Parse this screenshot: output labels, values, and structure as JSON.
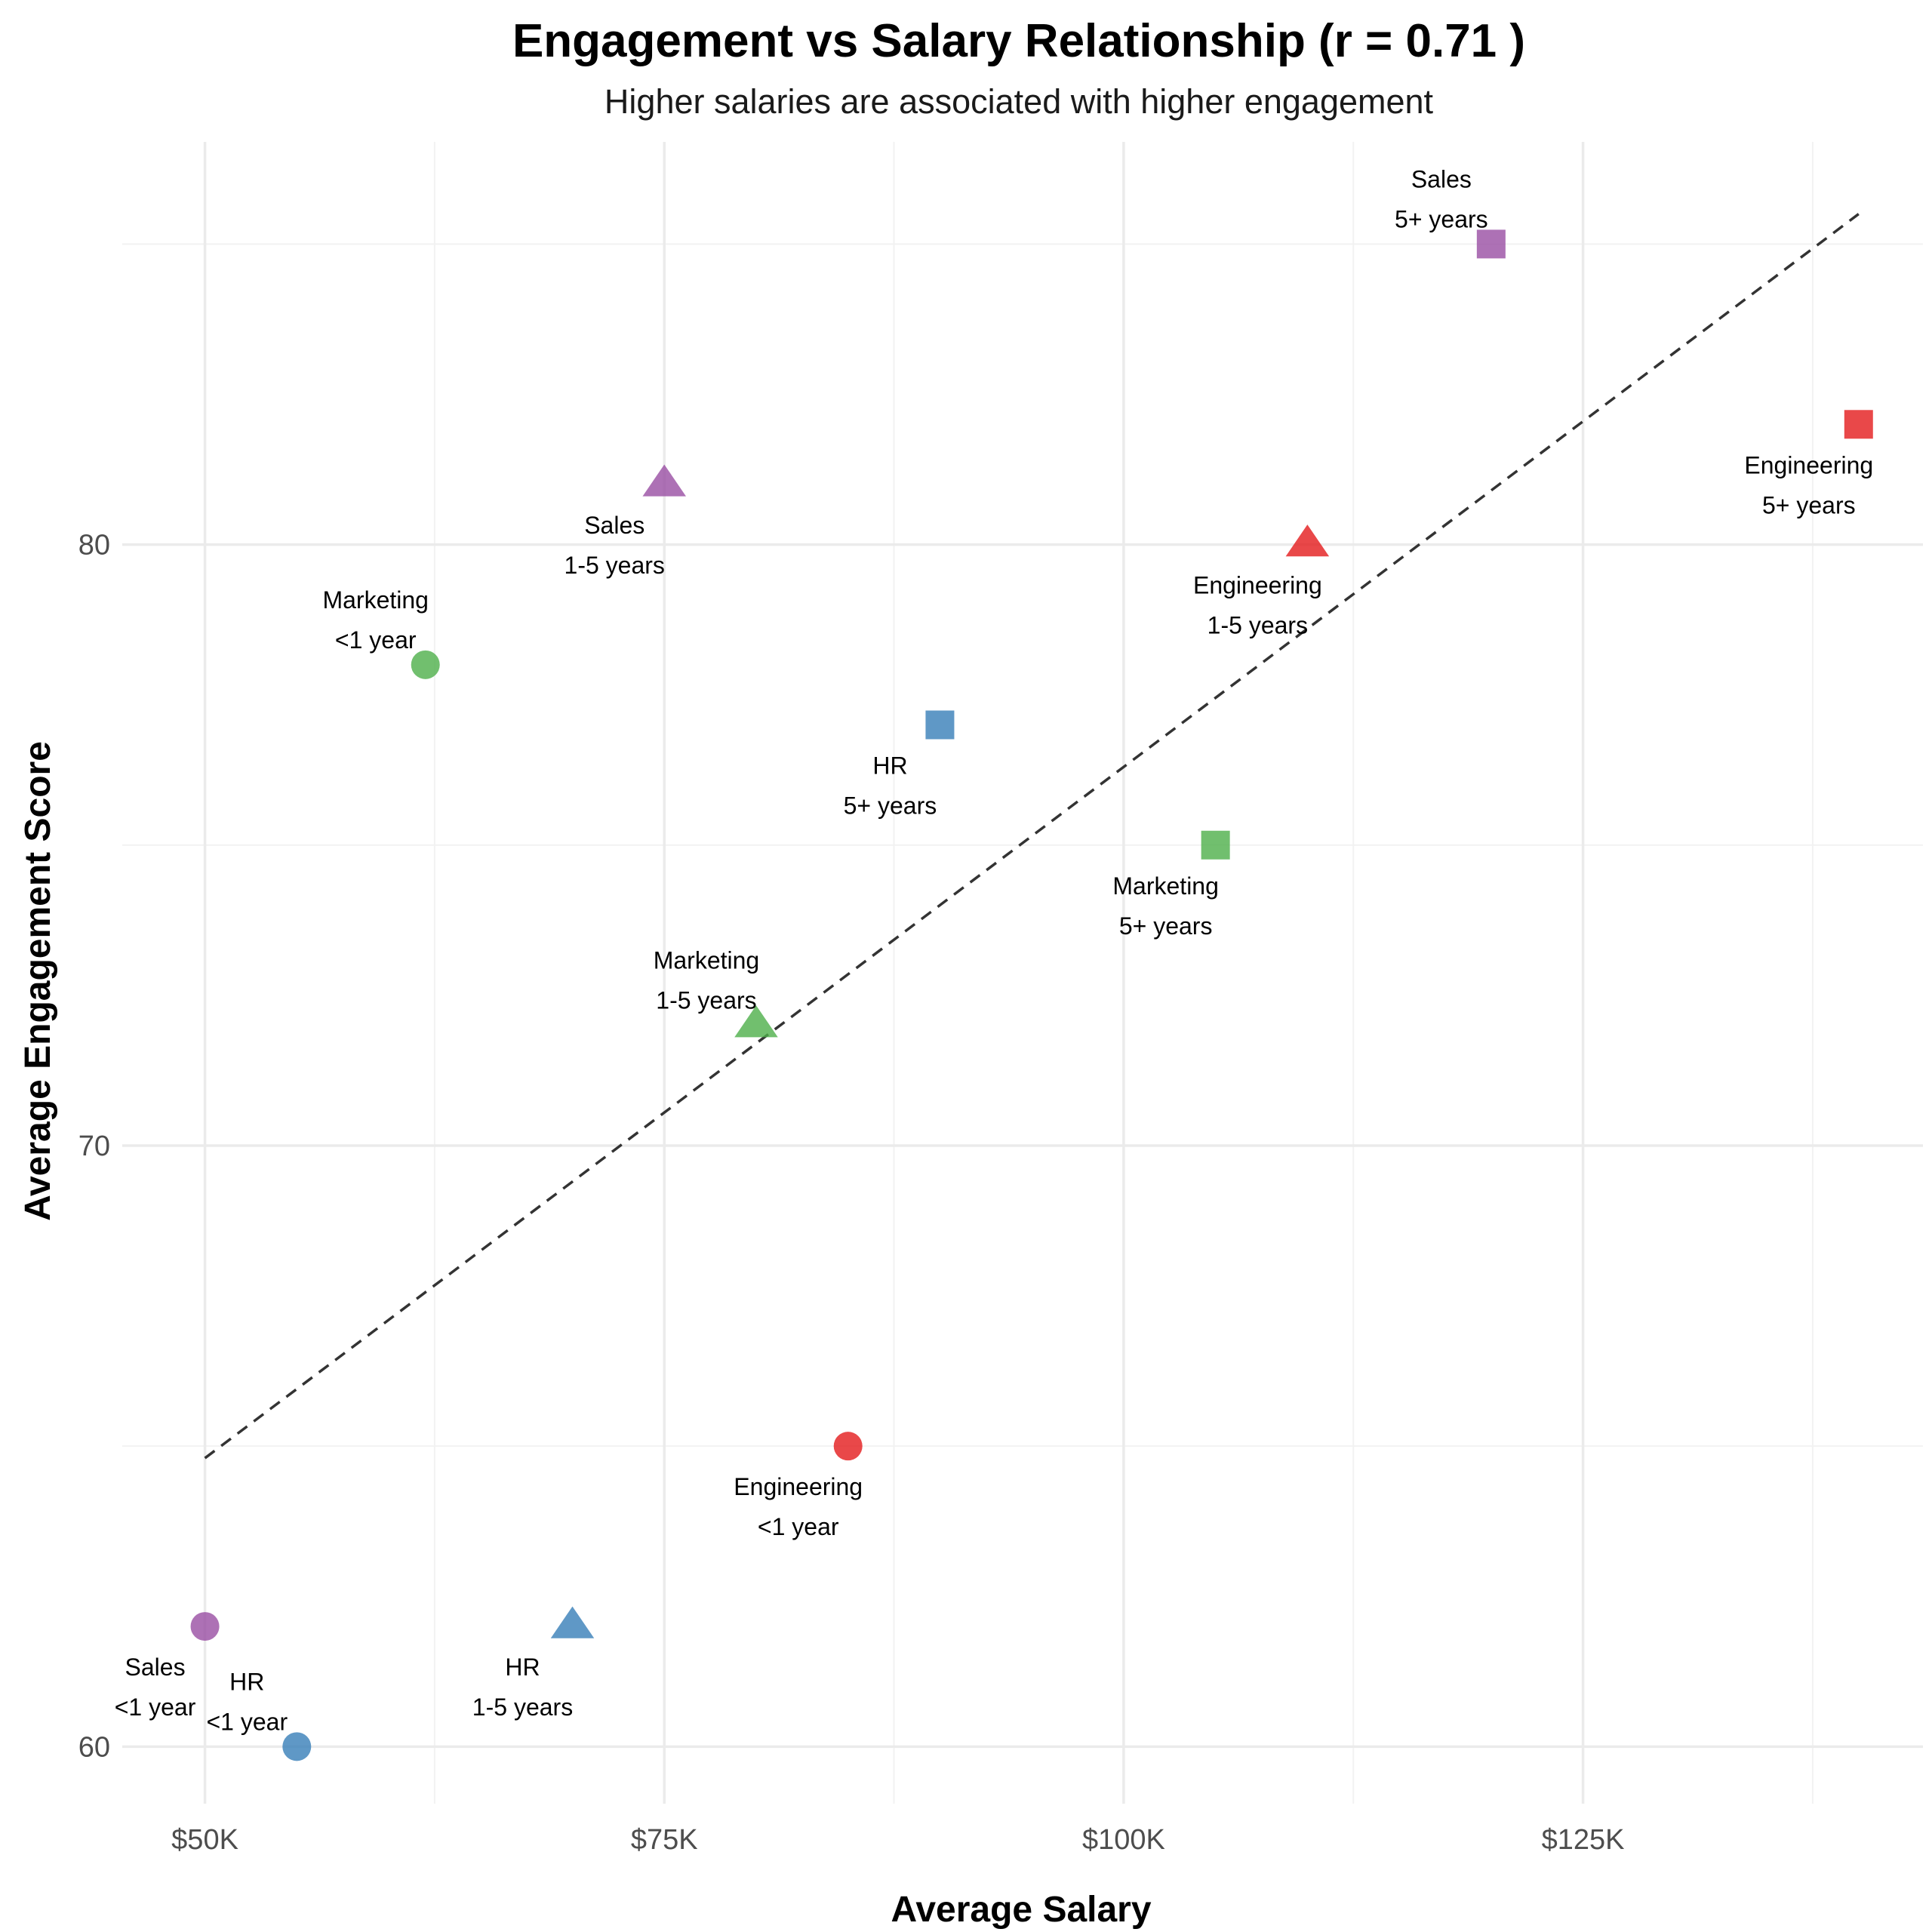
{
  "chart_data": {
    "type": "scatter",
    "title": "Engagement vs Salary Relationship (r = 0.71 )",
    "subtitle": "Higher salaries are associated with higher engagement",
    "xlabel": "Average Salary",
    "ylabel": "Average Engagement Score",
    "xlim": [
      45500,
      143500
    ],
    "ylim": [
      59.05,
      86.7
    ],
    "x_ticks": [
      50000,
      75000,
      100000,
      125000
    ],
    "x_tick_labels": [
      "$50K",
      "$75K",
      "$100K",
      "$125K"
    ],
    "x_minor_ticks": [
      62500,
      87500,
      112500,
      137500
    ],
    "y_ticks": [
      60,
      70,
      80
    ],
    "y_tick_labels": [
      "60",
      "70",
      "80"
    ],
    "y_minor_ticks": [
      65,
      75,
      85
    ],
    "grid": true,
    "legend": "none",
    "trend_line": {
      "style": "dashed",
      "x": [
        50000,
        140000
      ],
      "y": [
        64.8,
        85.5
      ]
    },
    "colors": {
      "Engineering": "#e41a1c",
      "HR": "#377eb8",
      "Marketing": "#4daf4a",
      "Sales": "#984ea3"
    },
    "shapes": {
      "<1 year": "circle",
      "1-5 years": "triangle",
      "5+ years": "square"
    },
    "points": [
      {
        "department": "Engineering",
        "tenure": "<1 year",
        "x": 85000,
        "y": 65,
        "label_pos": "below"
      },
      {
        "department": "Engineering",
        "tenure": "1-5 years",
        "x": 110000,
        "y": 80,
        "label_pos": "below"
      },
      {
        "department": "Engineering",
        "tenure": "5+ years",
        "x": 140000,
        "y": 82,
        "label_pos": "below"
      },
      {
        "department": "HR",
        "tenure": "<1 year",
        "x": 55000,
        "y": 60,
        "label_pos": "above"
      },
      {
        "department": "HR",
        "tenure": "1-5 years",
        "x": 70000,
        "y": 62,
        "label_pos": "below"
      },
      {
        "department": "HR",
        "tenure": "5+ years",
        "x": 90000,
        "y": 77,
        "label_pos": "below"
      },
      {
        "department": "Marketing",
        "tenure": "<1 year",
        "x": 62000,
        "y": 78,
        "label_pos": "above"
      },
      {
        "department": "Marketing",
        "tenure": "1-5 years",
        "x": 80000,
        "y": 72,
        "label_pos": "above"
      },
      {
        "department": "Marketing",
        "tenure": "5+ years",
        "x": 105000,
        "y": 75,
        "label_pos": "below"
      },
      {
        "department": "Sales",
        "tenure": "<1 year",
        "x": 50000,
        "y": 62,
        "label_pos": "below"
      },
      {
        "department": "Sales",
        "tenure": "1-5 years",
        "x": 75000,
        "y": 81,
        "label_pos": "below"
      },
      {
        "department": "Sales",
        "tenure": "5+ years",
        "x": 120000,
        "y": 85,
        "label_pos": "above"
      }
    ]
  }
}
